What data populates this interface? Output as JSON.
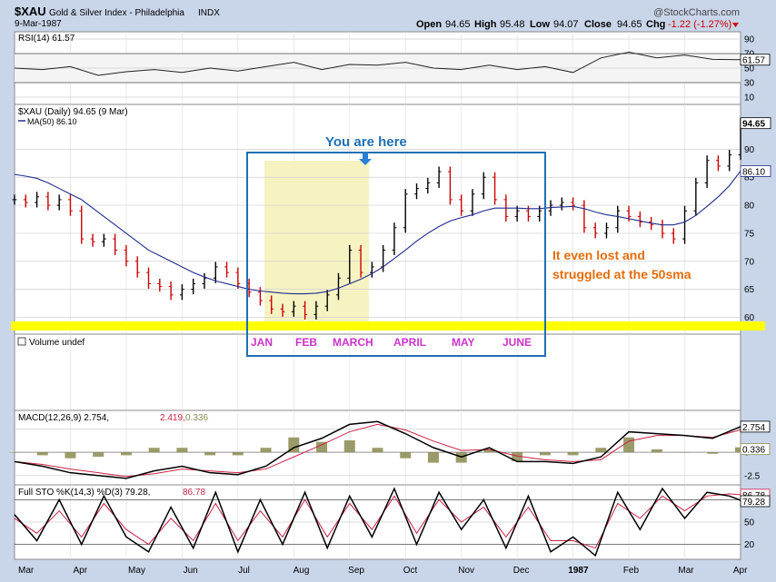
{
  "header": {
    "symbol": "$XAU",
    "name": "Gold & Silver Index - Philadelphia",
    "exchange": "INDX",
    "date": "9-Mar-1987",
    "watermark": "@StockCharts.com",
    "open_label": "Open",
    "open": "94.65",
    "high_label": "High",
    "high": "95.48",
    "low_label": "Low",
    "low": "94.07",
    "close_label": "Close",
    "close": "94.65",
    "chg_label": "Chg",
    "chg": "-1.22 (-1.27%)"
  },
  "colors": {
    "background": "#c9d6ea",
    "panel": "#ffffff",
    "price_up": "#000000",
    "price_down": "#cc0000",
    "ma_line": "#1f2b8c",
    "highlight_band": "#f6f3c2",
    "yellow_bar": "#ffff00",
    "annotation_box": "#1f6fb5",
    "month_labels": "#cc33cc",
    "annotation_orange": "#e46c0a",
    "annotation_blue": "#1f6fb5",
    "macd_hist": "#8a8a50"
  },
  "annotations": {
    "you_are_here": "You are here",
    "lost_line1": "It even lost and",
    "lost_line2": "struggled at the 50sma",
    "months": [
      "JAN",
      "FEB",
      "MARCH",
      "APRIL",
      "MAY",
      "JUNE"
    ]
  },
  "chart_data": [
    {
      "type": "line",
      "title": "RSI(14) 61.57",
      "indicator": "RSI(14)",
      "last_value": 61.57,
      "y_ticks": [
        90,
        70,
        50,
        30,
        10
      ],
      "ylim": [
        0,
        100
      ],
      "value_label": "61.57",
      "x": [
        0,
        5,
        10,
        15,
        20,
        25,
        30,
        35,
        40,
        45,
        50,
        55,
        60,
        65,
        70,
        75,
        80,
        85,
        90,
        95,
        100,
        105,
        110,
        115,
        120,
        125,
        130
      ],
      "values": [
        50,
        48,
        52,
        40,
        45,
        48,
        44,
        50,
        46,
        52,
        58,
        48,
        55,
        54,
        58,
        50,
        48,
        54,
        48,
        52,
        44,
        64,
        72,
        64,
        68,
        62,
        61.57
      ]
    },
    {
      "type": "line",
      "title": "$XAU (Daily) 94.65 (9 Mar)",
      "series_label": "$XAU (Daily) 94.65 (9 Mar)",
      "ma_label": "MA(50) 86.10",
      "y_ticks": [
        90,
        85,
        80,
        75,
        70,
        65,
        60
      ],
      "ylim": [
        57,
        98
      ],
      "last_price_label": "94.65",
      "ma_value_label": "86.10",
      "x_labels": [
        "Mar",
        "Apr",
        "May",
        "Jun",
        "Jul",
        "Aug",
        "Sep",
        "Oct",
        "Nov",
        "Dec",
        "1987",
        "Feb",
        "Mar",
        "Apr"
      ],
      "x": [
        0,
        2,
        4,
        6,
        8,
        10,
        12,
        14,
        16,
        18,
        20,
        22,
        24,
        26,
        28,
        30,
        32,
        34,
        36,
        38,
        40,
        42,
        44,
        46,
        48,
        50,
        52,
        54,
        56,
        58,
        60,
        62,
        64,
        66,
        68,
        70,
        72,
        74,
        76,
        78,
        80,
        82,
        84,
        86,
        88,
        90,
        92,
        94,
        96,
        98,
        100,
        102,
        104,
        106,
        108,
        110,
        112,
        114,
        116,
        118,
        120,
        122,
        124,
        126,
        128,
        130
      ],
      "close": [
        81,
        80.5,
        81.5,
        80,
        81,
        79,
        74,
        73.5,
        74,
        72,
        70,
        68,
        66,
        65.5,
        64,
        65,
        66,
        67,
        69,
        68,
        66,
        64.5,
        63,
        61.5,
        61,
        62,
        60.5,
        62,
        64,
        67,
        72,
        68,
        69,
        72,
        76,
        82,
        83,
        84,
        86,
        81,
        79,
        82,
        85,
        81,
        78,
        79,
        78,
        79,
        80,
        80.5,
        80,
        76,
        75,
        76,
        79,
        78,
        77,
        76.5,
        75,
        74,
        79,
        84,
        88,
        87,
        89,
        94.65
      ],
      "ma50": [
        85.5,
        85.2,
        84.8,
        84,
        83,
        82,
        81,
        79.5,
        78,
        76.5,
        75,
        73.5,
        72,
        71,
        70,
        69,
        68,
        67.2,
        66.5,
        66,
        65.5,
        65,
        64.7,
        64.5,
        64.3,
        64.2,
        64.2,
        64.3,
        64.6,
        65.2,
        66,
        66.8,
        67.8,
        69,
        70.5,
        72,
        73.6,
        75,
        76.2,
        77.2,
        77.8,
        78.3,
        79,
        79.5,
        79.5,
        79.5,
        79.4,
        79.4,
        79.6,
        79.7,
        79.8,
        79.4,
        78.8,
        78.3,
        78,
        77.6,
        77.2,
        76.8,
        76.5,
        76.5,
        77,
        78.2,
        79.8,
        81.5,
        83.5,
        86.1
      ]
    },
    {
      "type": "bar",
      "title": "Volume undef",
      "values": []
    },
    {
      "type": "line",
      "title": "MACD(12,26,9) 2.754, 2.419, 0.336",
      "macd_label": "MACD(12,26,9) 2.754,",
      "signal_label": "2.419,",
      "hist_label": "0.336",
      "y_ticks": [
        2.5,
        0.0,
        -2.5
      ],
      "ylim": [
        -3.5,
        4.5
      ],
      "value_label_macd": "2.754",
      "value_label_hist": "0.336",
      "x": [
        0,
        5,
        10,
        15,
        20,
        25,
        30,
        35,
        40,
        45,
        50,
        55,
        60,
        65,
        70,
        75,
        80,
        85,
        90,
        95,
        100,
        105,
        110,
        115,
        120,
        125,
        130
      ],
      "macd": [
        -1,
        -1.5,
        -2.2,
        -2.5,
        -2.8,
        -2,
        -1.5,
        -2.2,
        -2.4,
        -1.5,
        0.5,
        1.5,
        3,
        3.3,
        2,
        0.5,
        -0.5,
        0.5,
        -1,
        -1,
        -1.2,
        -0.5,
        2.2,
        2,
        1.8,
        1.5,
        2.754
      ],
      "signal": [
        -1,
        -1.3,
        -1.8,
        -2.2,
        -2.6,
        -2.3,
        -1.8,
        -2,
        -2.2,
        -1.8,
        -0.5,
        0.8,
        2.2,
        3,
        2.4,
        1.2,
        0.2,
        0.3,
        -0.4,
        -0.8,
        -1,
        -0.8,
        1.2,
        1.8,
        1.8,
        1.6,
        2.419
      ]
    },
    {
      "type": "line",
      "title": "Full STO %K(14,3) %D(3) 79.28, 86.78",
      "sto_label": "Full STO %K(14,3) %D(3) 79.28,",
      "d_label": "86.78",
      "y_ticks": [
        80,
        50,
        20
      ],
      "ylim": [
        0,
        100
      ],
      "value_label_k": "79.28",
      "value_label_d": "86.78",
      "x": [
        0,
        4,
        8,
        12,
        16,
        20,
        24,
        28,
        32,
        36,
        40,
        44,
        48,
        52,
        56,
        60,
        64,
        68,
        72,
        76,
        80,
        84,
        88,
        92,
        96,
        100,
        104,
        108,
        112,
        116,
        120,
        124,
        128,
        130
      ],
      "k": [
        60,
        25,
        80,
        20,
        85,
        30,
        10,
        70,
        15,
        90,
        10,
        80,
        20,
        90,
        15,
        85,
        30,
        95,
        20,
        90,
        40,
        80,
        15,
        85,
        10,
        30,
        5,
        90,
        40,
        95,
        55,
        90,
        85,
        79.28
      ],
      "d": [
        55,
        35,
        65,
        30,
        75,
        40,
        20,
        55,
        25,
        75,
        25,
        65,
        30,
        80,
        30,
        75,
        40,
        85,
        35,
        80,
        50,
        70,
        30,
        70,
        25,
        25,
        15,
        75,
        55,
        85,
        65,
        85,
        88,
        86.78
      ]
    }
  ]
}
